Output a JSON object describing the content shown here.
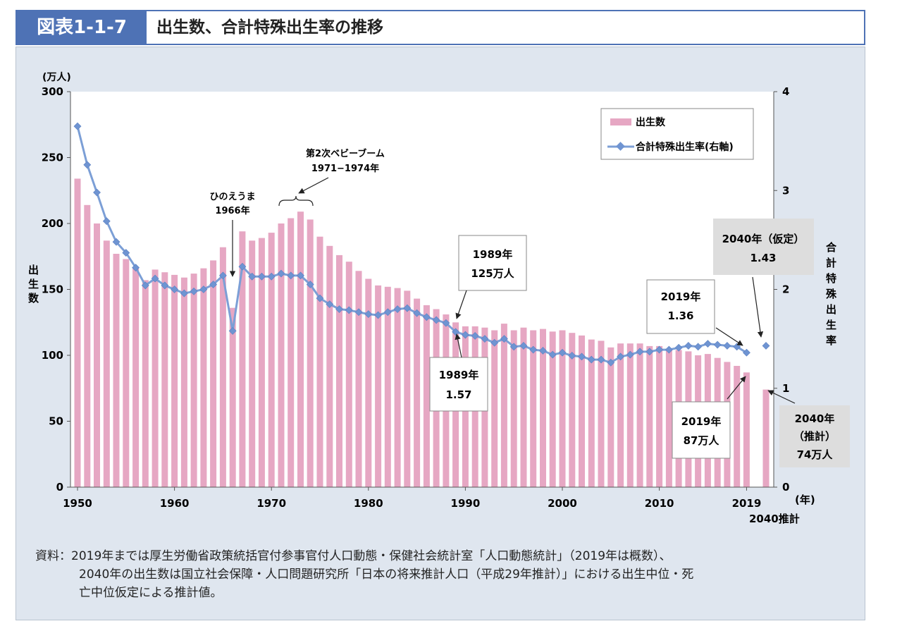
{
  "header": {
    "figure_number": "図表1-1-7",
    "title": "出生数、合計特殊出生率の推移"
  },
  "chart_data": {
    "type": "bar+line",
    "categories": [
      1950,
      1951,
      1952,
      1953,
      1954,
      1955,
      1956,
      1957,
      1958,
      1959,
      1960,
      1961,
      1962,
      1963,
      1964,
      1965,
      1966,
      1967,
      1968,
      1969,
      1970,
      1971,
      1972,
      1973,
      1974,
      1975,
      1976,
      1977,
      1978,
      1979,
      1980,
      1981,
      1982,
      1983,
      1984,
      1985,
      1986,
      1987,
      1988,
      1989,
      1990,
      1991,
      1992,
      1993,
      1994,
      1995,
      1996,
      1997,
      1998,
      1999,
      2000,
      2001,
      2002,
      2003,
      2004,
      2005,
      2006,
      2007,
      2008,
      2009,
      2010,
      2011,
      2012,
      2013,
      2014,
      2015,
      2016,
      2017,
      2018,
      2019,
      2040
    ],
    "series": [
      {
        "name": "出生数",
        "axis": "left",
        "unit": "万人",
        "values": [
          234,
          214,
          200,
          187,
          177,
          173,
          167,
          157,
          165,
          163,
          161,
          159,
          162,
          166,
          172,
          182,
          136,
          194,
          187,
          189,
          193,
          200,
          204,
          209,
          203,
          190,
          183,
          176,
          171,
          164,
          158,
          153,
          152,
          151,
          149,
          143,
          138,
          135,
          131,
          125,
          122,
          122,
          121,
          119,
          124,
          119,
          121,
          119,
          120,
          118,
          119,
          117,
          115,
          112,
          111,
          106,
          109,
          109,
          109,
          107,
          107,
          105,
          104,
          103,
          100,
          101,
          98,
          95,
          92,
          87,
          74
        ]
      },
      {
        "name": "合計特殊出生率(右軸)",
        "axis": "right",
        "values": [
          3.65,
          3.26,
          2.98,
          2.69,
          2.48,
          2.37,
          2.22,
          2.04,
          2.11,
          2.04,
          2.0,
          1.96,
          1.98,
          2.0,
          2.05,
          2.14,
          1.58,
          2.23,
          2.13,
          2.13,
          2.13,
          2.16,
          2.14,
          2.14,
          2.05,
          1.91,
          1.85,
          1.8,
          1.79,
          1.77,
          1.75,
          1.74,
          1.77,
          1.8,
          1.81,
          1.76,
          1.72,
          1.69,
          1.66,
          1.57,
          1.54,
          1.53,
          1.5,
          1.46,
          1.5,
          1.42,
          1.43,
          1.39,
          1.38,
          1.34,
          1.36,
          1.33,
          1.32,
          1.29,
          1.29,
          1.26,
          1.32,
          1.34,
          1.37,
          1.37,
          1.39,
          1.39,
          1.41,
          1.43,
          1.42,
          1.45,
          1.44,
          1.43,
          1.42,
          1.36,
          1.43
        ]
      }
    ],
    "y_left": {
      "label": "出生数",
      "unit": "(万人)",
      "min": 0,
      "max": 300,
      "ticks": [
        "0",
        "50",
        "100",
        "150",
        "200",
        "250",
        "300"
      ]
    },
    "y_right": {
      "label": "合計特殊出生率",
      "min": 0,
      "max": 4,
      "ticks": [
        "0",
        "1",
        "2",
        "3",
        "4"
      ]
    },
    "x_axis": {
      "unit": "(年)",
      "ticks": [
        "1950",
        "1960",
        "1970",
        "1980",
        "1990",
        "2000",
        "2010",
        "2019"
      ],
      "extra_label": "2040推計"
    },
    "legend": {
      "position": "top-right",
      "entries": [
        "出生数",
        "合計特殊出生率(右軸)"
      ]
    },
    "annotations": {
      "hinoeuma": {
        "line1": "ひのえうま",
        "line2": "1966年"
      },
      "babyboom": {
        "line1": "第2次ベビーブーム",
        "line2": "1971−1974年"
      },
      "b1989": {
        "line1": "1989年",
        "line2": "125万人"
      },
      "r1989": {
        "line1": "1989年",
        "line2": "1.57"
      },
      "r2019": {
        "line1": "2019年",
        "line2": "1.36"
      },
      "b2019": {
        "line1": "2019年",
        "line2": "87万人"
      },
      "r2040": {
        "line1": "2040年（仮定）",
        "line2": "1.43"
      },
      "b2040": {
        "line1": "2040年",
        "line2": "（推計）",
        "line3": "74万人"
      }
    }
  },
  "source": {
    "line1": "資料：2019年までは厚生労働省政策統括官付参事官付人口動態・保健社会統計室「人口動態統計」（2019年は概数）、",
    "line2": "2040年の出生数は国立社会保障・人口問題研究所「日本の将来推計人口（平成29年推計）」における出生中位・死",
    "line3": "亡中位仮定による推計値。"
  },
  "colors": {
    "bar": "#e6a7c3",
    "line": "#7c9fd6",
    "marker": "#6f94d2",
    "header": "#4e72b5",
    "panel": "#dfe6ef"
  }
}
